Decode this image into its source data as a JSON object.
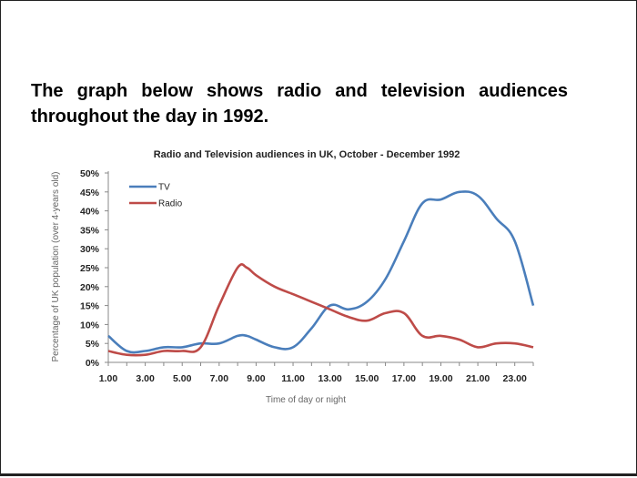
{
  "heading": "The graph below shows radio and television audiences throughout the day in 1992.",
  "chart_data": {
    "type": "line",
    "title": "Radio and Television audiences in UK, October - December 1992",
    "xlabel": "Time of day or night",
    "ylabel": "Percentage of UK population (over 4-years old)",
    "x": [
      1,
      2,
      3,
      4,
      5,
      6,
      7,
      8,
      8.5,
      9,
      10,
      11,
      12,
      13,
      14,
      15,
      16,
      17,
      18,
      19,
      20,
      21,
      22,
      23,
      24
    ],
    "x_tick_labels": [
      "1.00",
      "3.00",
      "5.00",
      "7.00",
      "9.00",
      "11.00",
      "13.00",
      "15.00",
      "17.00",
      "19.00",
      "21.00",
      "23.00"
    ],
    "x_tick_values": [
      1,
      3,
      5,
      7,
      9,
      11,
      13,
      15,
      17,
      19,
      21,
      23
    ],
    "xlim": [
      1,
      24
    ],
    "y_tick_labels": [
      "0%",
      "5%",
      "10%",
      "15%",
      "20%",
      "25%",
      "30%",
      "35%",
      "40%",
      "45%",
      "50%"
    ],
    "y_tick_values": [
      0,
      5,
      10,
      15,
      20,
      25,
      30,
      35,
      40,
      45,
      50
    ],
    "ylim": [
      0,
      50
    ],
    "grid": false,
    "legend_position": "top-left",
    "series": [
      {
        "name": "TV",
        "color": "#4a7ebb",
        "values": [
          7,
          3,
          3,
          4,
          4,
          5,
          5,
          7,
          7,
          6,
          4,
          4,
          9,
          15,
          14,
          16,
          22,
          32,
          42,
          43,
          45,
          44,
          38,
          32,
          15
        ]
      },
      {
        "name": "Radio",
        "color": "#be4b48",
        "values": [
          3,
          2,
          2,
          3,
          3,
          4,
          15,
          25,
          25,
          23,
          20,
          18,
          16,
          14,
          12,
          11,
          13,
          13,
          7,
          7,
          6,
          4,
          5,
          5,
          4
        ]
      }
    ]
  }
}
